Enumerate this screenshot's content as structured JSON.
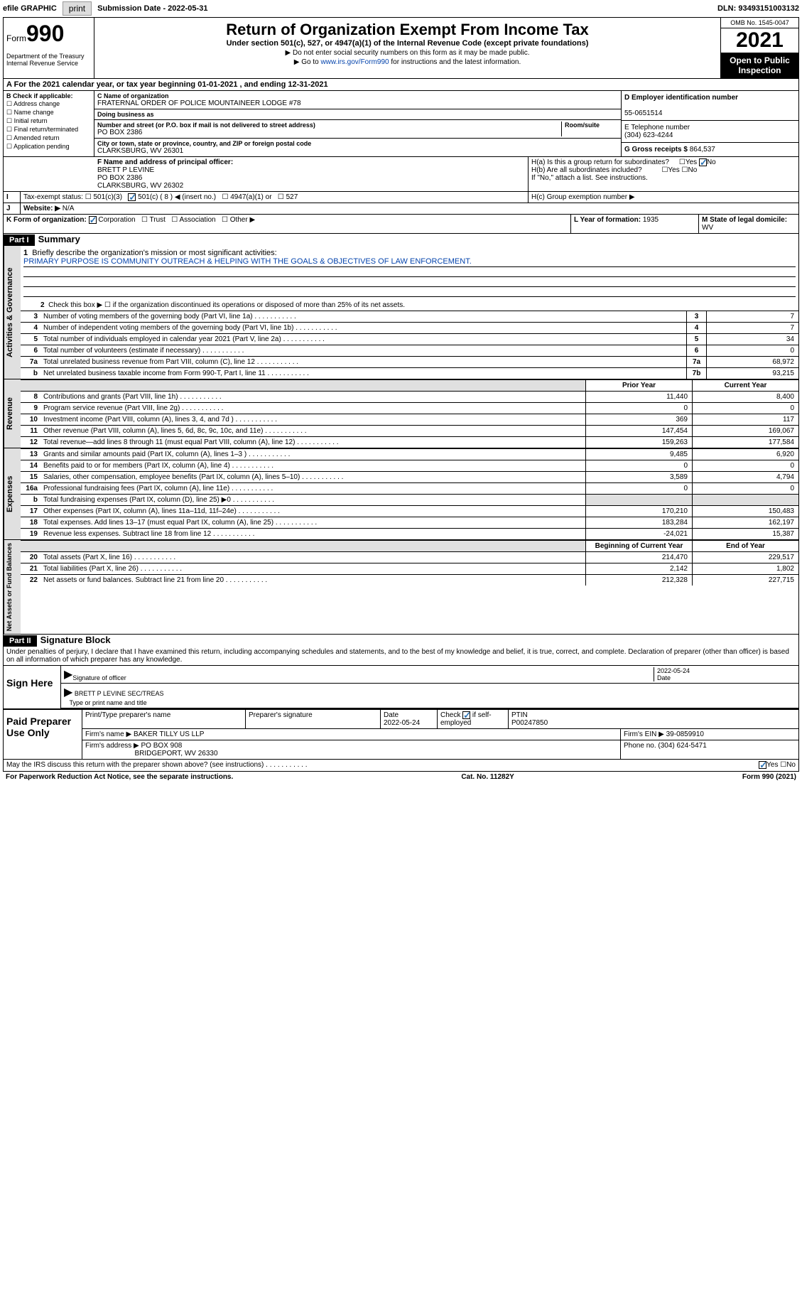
{
  "topbar": {
    "efile": "efile GRAPHIC",
    "print": "print",
    "submission_label": "Submission Date",
    "submission_date": "2022-05-31",
    "dln_label": "DLN:",
    "dln": "93493151003132"
  },
  "header": {
    "form_word": "Form",
    "form_num": "990",
    "dept": "Department of the Treasury\nInternal Revenue Service",
    "title": "Return of Organization Exempt From Income Tax",
    "subtitle": "Under section 501(c), 527, or 4947(a)(1) of the Internal Revenue Code (except private foundations)",
    "note1": "▶ Do not enter social security numbers on this form as it may be made public.",
    "note2_pre": "▶ Go to ",
    "note2_link": "www.irs.gov/Form990",
    "note2_post": " for instructions and the latest information.",
    "omb": "OMB No. 1545-0047",
    "year": "2021",
    "inspect": "Open to Public Inspection"
  },
  "periodA": "For the 2021 calendar year, or tax year beginning 01-01-2021   , and ending 12-31-2021",
  "sectionB": {
    "label": "B Check if applicable:",
    "items": [
      "Address change",
      "Name change",
      "Initial return",
      "Final return/terminated",
      "Amended return",
      "Application pending"
    ],
    "c_label": "C Name of organization",
    "org_name": "FRATERNAL ORDER OF POLICE MOUNTAINEER LODGE #78",
    "dba_label": "Doing business as",
    "addr_label": "Number and street (or P.O. box if mail is not delivered to street address)",
    "room_label": "Room/suite",
    "addr": "PO BOX 2386",
    "city_label": "City or town, state or province, country, and ZIP or foreign postal code",
    "city": "CLARKSBURG, WV  26301",
    "d_label": "D Employer identification number",
    "ein": "55-0651514",
    "e_label": "E Telephone number",
    "phone": "(304) 623-4244",
    "g_label": "G Gross receipts $",
    "gross": "864,537"
  },
  "sectionF": {
    "label": "F Name and address of principal officer:",
    "name": "BRETT P LEVINE",
    "addr1": "PO BOX 2386",
    "addr2": "CLARKSBURG, WV  26302"
  },
  "sectionH": {
    "ha": "H(a)  Is this a group return for subordinates?",
    "hb": "H(b)  Are all subordinates included?",
    "hb_note": "If \"No,\" attach a list. See instructions.",
    "hc": "H(c)  Group exemption number ▶",
    "yes": "Yes",
    "no": "No"
  },
  "sectionI": {
    "label": "Tax-exempt status:",
    "opts": [
      "501(c)(3)",
      "501(c) ( 8 ) ◀ (insert no.)",
      "4947(a)(1) or",
      "527"
    ]
  },
  "sectionJ": {
    "label": "Website: ▶",
    "value": "N/A"
  },
  "sectionK": {
    "label": "K Form of organization:",
    "opts": [
      "Corporation",
      "Trust",
      "Association",
      "Other ▶"
    ]
  },
  "sectionL": {
    "label": "L Year of formation:",
    "value": "1935"
  },
  "sectionM": {
    "label": "M State of legal domicile:",
    "value": "WV"
  },
  "part1": {
    "header": "Part I",
    "title": "Summary",
    "line1_label": "Briefly describe the organization's mission or most significant activities:",
    "mission": "PRIMARY PURPOSE IS COMMUNITY OUTREACH & HELPING WITH THE GOALS & OBJECTIVES OF LAW ENFORCEMENT.",
    "line2": "Check this box ▶ ☐  if the organization discontinued its operations or disposed of more than 25% of its net assets.",
    "governance_label": "Activities & Governance",
    "revenue_label": "Revenue",
    "expenses_label": "Expenses",
    "netassets_label": "Net Assets or Fund Balances",
    "prior_header": "Prior Year",
    "current_header": "Current Year",
    "begin_header": "Beginning of Current Year",
    "end_header": "End of Year",
    "gov_lines": [
      {
        "n": "3",
        "desc": "Number of voting members of the governing body (Part VI, line 1a)",
        "box": "3",
        "val": "7"
      },
      {
        "n": "4",
        "desc": "Number of independent voting members of the governing body (Part VI, line 1b)",
        "box": "4",
        "val": "7"
      },
      {
        "n": "5",
        "desc": "Total number of individuals employed in calendar year 2021 (Part V, line 2a)",
        "box": "5",
        "val": "34"
      },
      {
        "n": "6",
        "desc": "Total number of volunteers (estimate if necessary)",
        "box": "6",
        "val": "0"
      },
      {
        "n": "7a",
        "desc": "Total unrelated business revenue from Part VIII, column (C), line 12",
        "box": "7a",
        "val": "68,972"
      },
      {
        "n": "b",
        "desc": "Net unrelated business taxable income from Form 990-T, Part I, line 11",
        "box": "7b",
        "val": "93,215"
      }
    ],
    "rev_lines": [
      {
        "n": "8",
        "desc": "Contributions and grants (Part VIII, line 1h)",
        "prior": "11,440",
        "curr": "8,400"
      },
      {
        "n": "9",
        "desc": "Program service revenue (Part VIII, line 2g)",
        "prior": "0",
        "curr": "0"
      },
      {
        "n": "10",
        "desc": "Investment income (Part VIII, column (A), lines 3, 4, and 7d )",
        "prior": "369",
        "curr": "117"
      },
      {
        "n": "11",
        "desc": "Other revenue (Part VIII, column (A), lines 5, 6d, 8c, 9c, 10c, and 11e)",
        "prior": "147,454",
        "curr": "169,067"
      },
      {
        "n": "12",
        "desc": "Total revenue—add lines 8 through 11 (must equal Part VIII, column (A), line 12)",
        "prior": "159,263",
        "curr": "177,584"
      }
    ],
    "exp_lines": [
      {
        "n": "13",
        "desc": "Grants and similar amounts paid (Part IX, column (A), lines 1–3 )",
        "prior": "9,485",
        "curr": "6,920"
      },
      {
        "n": "14",
        "desc": "Benefits paid to or for members (Part IX, column (A), line 4)",
        "prior": "0",
        "curr": "0"
      },
      {
        "n": "15",
        "desc": "Salaries, other compensation, employee benefits (Part IX, column (A), lines 5–10)",
        "prior": "3,589",
        "curr": "4,794"
      },
      {
        "n": "16a",
        "desc": "Professional fundraising fees (Part IX, column (A), line 11e)",
        "prior": "0",
        "curr": "0"
      },
      {
        "n": "b",
        "desc": "Total fundraising expenses (Part IX, column (D), line 25) ▶0",
        "prior": "",
        "curr": "",
        "shaded": true
      },
      {
        "n": "17",
        "desc": "Other expenses (Part IX, column (A), lines 11a–11d, 11f–24e)",
        "prior": "170,210",
        "curr": "150,483"
      },
      {
        "n": "18",
        "desc": "Total expenses. Add lines 13–17 (must equal Part IX, column (A), line 25)",
        "prior": "183,284",
        "curr": "162,197"
      },
      {
        "n": "19",
        "desc": "Revenue less expenses. Subtract line 18 from line 12",
        "prior": "-24,021",
        "curr": "15,387"
      }
    ],
    "na_lines": [
      {
        "n": "20",
        "desc": "Total assets (Part X, line 16)",
        "prior": "214,470",
        "curr": "229,517"
      },
      {
        "n": "21",
        "desc": "Total liabilities (Part X, line 26)",
        "prior": "2,142",
        "curr": "1,802"
      },
      {
        "n": "22",
        "desc": "Net assets or fund balances. Subtract line 21 from line 20",
        "prior": "212,328",
        "curr": "227,715"
      }
    ]
  },
  "part2": {
    "header": "Part II",
    "title": "Signature Block",
    "declaration": "Under penalties of perjury, I declare that I have examined this return, including accompanying schedules and statements, and to the best of my knowledge and belief, it is true, correct, and complete. Declaration of preparer (other than officer) is based on all information of which preparer has any knowledge.",
    "sign_here": "Sign Here",
    "sig_officer": "Signature of officer",
    "sig_date": "2022-05-24",
    "date_label": "Date",
    "officer_name": "BRETT P LEVINE  SEC/TREAS",
    "officer_title_label": "Type or print name and title",
    "paid_label": "Paid Preparer Use Only",
    "prep_name_label": "Print/Type preparer's name",
    "prep_sig_label": "Preparer's signature",
    "prep_date": "2022-05-24",
    "check_label": "Check",
    "self_emp": "if self-employed",
    "ptin_label": "PTIN",
    "ptin": "P00247850",
    "firm_name_label": "Firm's name    ▶",
    "firm_name": "BAKER TILLY US LLP",
    "firm_ein_label": "Firm's EIN ▶",
    "firm_ein": "39-0859910",
    "firm_addr_label": "Firm's address ▶",
    "firm_addr1": "PO BOX 908",
    "firm_addr2": "BRIDGEPORT, WV  26330",
    "firm_phone_label": "Phone no.",
    "firm_phone": "(304) 624-5471",
    "discuss": "May the IRS discuss this return with the preparer shown above? (see instructions)"
  },
  "footer": {
    "paperwork": "For Paperwork Reduction Act Notice, see the separate instructions.",
    "catno": "Cat. No. 11282Y",
    "formref": "Form 990 (2021)"
  }
}
